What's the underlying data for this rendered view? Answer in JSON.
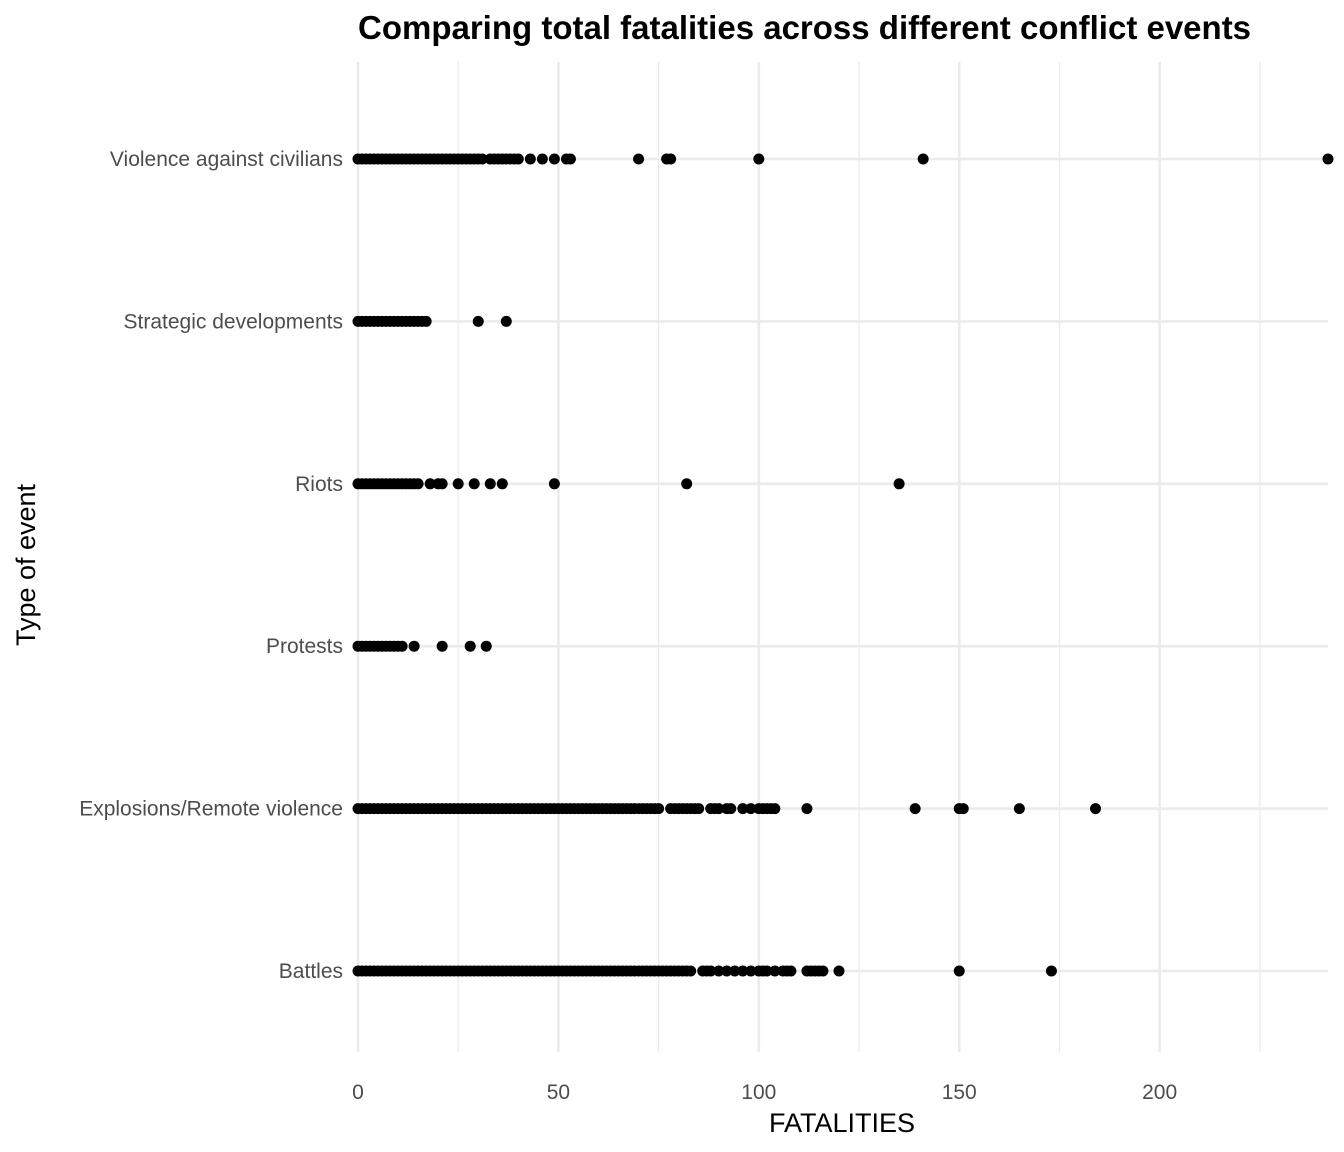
{
  "chart_data": {
    "type": "scatter",
    "title": "Comparing total fatalities across different conflict events",
    "xlabel": "FATALITIES",
    "ylabel": "Type of event",
    "xlim": [
      0,
      242
    ],
    "x_ticks": [
      0,
      50,
      100,
      150,
      200
    ],
    "x_tick_labels": [
      "0",
      "50",
      "100",
      "150",
      "200"
    ],
    "grid": true,
    "legend": "none",
    "point_color": "#000000",
    "categories": [
      "Battles",
      "Explosions/Remote violence",
      "Protests",
      "Riots",
      "Strategic developments",
      "Violence against civilians"
    ],
    "series": [
      {
        "category": "Battles",
        "values": [
          0,
          1,
          2,
          3,
          4,
          5,
          6,
          7,
          8,
          9,
          10,
          11,
          12,
          13,
          14,
          15,
          16,
          17,
          18,
          19,
          20,
          21,
          22,
          23,
          24,
          25,
          26,
          27,
          28,
          29,
          30,
          31,
          32,
          33,
          34,
          35,
          36,
          37,
          38,
          39,
          40,
          41,
          42,
          43,
          44,
          45,
          46,
          47,
          48,
          49,
          50,
          51,
          52,
          53,
          54,
          55,
          56,
          57,
          58,
          59,
          60,
          61,
          62,
          63,
          64,
          65,
          66,
          67,
          68,
          69,
          70,
          71,
          72,
          73,
          74,
          75,
          76,
          77,
          78,
          79,
          80,
          81,
          82,
          83,
          86,
          87,
          88,
          90,
          92,
          94,
          96,
          98,
          100,
          101,
          102,
          104,
          106,
          107,
          108,
          112,
          113,
          114,
          115,
          116,
          120,
          150,
          173
        ]
      },
      {
        "category": "Explosions/Remote violence",
        "values": [
          0,
          1,
          2,
          3,
          4,
          5,
          6,
          7,
          8,
          9,
          10,
          11,
          12,
          13,
          14,
          15,
          16,
          17,
          18,
          19,
          20,
          21,
          22,
          23,
          24,
          25,
          26,
          27,
          28,
          29,
          30,
          31,
          32,
          33,
          34,
          35,
          36,
          37,
          38,
          39,
          40,
          41,
          42,
          43,
          44,
          45,
          46,
          47,
          48,
          49,
          50,
          51,
          52,
          53,
          54,
          55,
          56,
          57,
          58,
          59,
          60,
          61,
          62,
          63,
          64,
          65,
          66,
          67,
          68,
          69,
          70,
          71,
          72,
          73,
          74,
          75,
          78,
          79,
          80,
          81,
          82,
          83,
          84,
          85,
          88,
          89,
          90,
          92,
          93,
          96,
          98,
          100,
          101,
          102,
          103,
          104,
          112,
          139,
          150,
          151,
          165,
          184
        ]
      },
      {
        "category": "Protests",
        "values": [
          0,
          1,
          2,
          3,
          4,
          5,
          6,
          7,
          8,
          9,
          10,
          11,
          14,
          21,
          28,
          32
        ]
      },
      {
        "category": "Riots",
        "values": [
          0,
          1,
          2,
          3,
          4,
          5,
          6,
          7,
          8,
          9,
          10,
          11,
          12,
          13,
          14,
          15,
          18,
          20,
          21,
          25,
          29,
          33,
          36,
          49,
          82,
          135
        ]
      },
      {
        "category": "Strategic developments",
        "values": [
          0,
          1,
          2,
          3,
          4,
          5,
          6,
          7,
          8,
          9,
          10,
          11,
          12,
          13,
          14,
          15,
          16,
          17,
          30,
          37
        ]
      },
      {
        "category": "Violence against civilians",
        "values": [
          0,
          1,
          2,
          3,
          4,
          5,
          6,
          7,
          8,
          9,
          10,
          11,
          12,
          13,
          14,
          15,
          16,
          17,
          18,
          19,
          20,
          21,
          22,
          23,
          24,
          25,
          26,
          27,
          28,
          29,
          30,
          31,
          33,
          34,
          35,
          36,
          37,
          38,
          39,
          40,
          43,
          46,
          49,
          52,
          53,
          70,
          77,
          78,
          100,
          141,
          242
        ]
      }
    ]
  }
}
